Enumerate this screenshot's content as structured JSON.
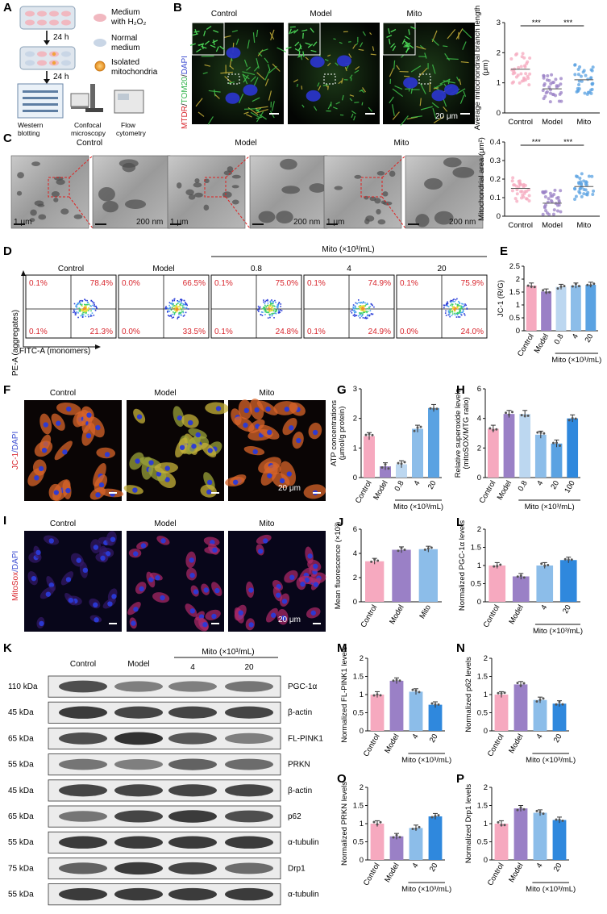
{
  "panels": {
    "A": {
      "label": "A",
      "legend": [
        {
          "text_line1": "Medium",
          "text_line2": "with H₂O₂",
          "color": "#f1b8c0"
        },
        {
          "text_line1": "Normal",
          "text_line2": "medium",
          "color": "#c9d6e6"
        },
        {
          "text_line1": "Isolated",
          "text_line2": "mitochondria",
          "color": "#f0a33a"
        }
      ],
      "step1": "24 h",
      "step2": "24 h",
      "methods": [
        "Western\nblotting",
        "Confocal\nmicroscopy",
        "Flow\ncytometry"
      ]
    },
    "B": {
      "label": "B",
      "image_titles": [
        "Control",
        "Model",
        "Mito"
      ],
      "stain_label": {
        "p1": "MTDR",
        "p2": "/",
        "p3": "TOM20",
        "p4": "/",
        "p5": "DAPI"
      },
      "scale": "20 μm"
    },
    "C": {
      "label": "C",
      "image_titles": [
        "Control",
        "Model",
        "Mito"
      ],
      "scale_labels": [
        "1 μm",
        "200 nm",
        "1 μm",
        "200 nm",
        "1 μm",
        "200 nm"
      ]
    },
    "D": {
      "label": "D",
      "header_mito": "Mito (×10³/mL)",
      "titles": [
        "Control",
        "Model",
        "0.8",
        "4",
        "20"
      ],
      "quadrants": [
        [
          "0.1%",
          "78.4%",
          "0.1%",
          "21.3%"
        ],
        [
          "0.0%",
          "66.5%",
          "0.0%",
          "33.5%"
        ],
        [
          "0.1%",
          "75.0%",
          "0.1%",
          "24.8%"
        ],
        [
          "0.1%",
          "74.9%",
          "0.1%",
          "24.9%"
        ],
        [
          "0.1%",
          "75.9%",
          "0.0%",
          "24.0%"
        ]
      ],
      "ylabel": "PE-A (aggregates)",
      "xlabel": "FITC-A (monomers)"
    },
    "F": {
      "label": "F",
      "titles": [
        "Control",
        "Model",
        "Mito"
      ],
      "stain_label": {
        "p1": "JC-1",
        "p2": "/DAPI"
      },
      "scale": "20 μm"
    },
    "I": {
      "label": "I",
      "titles": [
        "Control",
        "Model",
        "Mito"
      ],
      "stain_label": {
        "p1": "MitoSox",
        "p2": "/DAPI"
      },
      "scale": "20 μm"
    },
    "K": {
      "label": "K",
      "lane_titles": [
        "Control",
        "Model",
        "4",
        "20"
      ],
      "header_mito": "Mito (×10³/mL)",
      "rows": [
        {
          "kda": "110 kDa",
          "protein": "PGC-1α"
        },
        {
          "kda": "45 kDa",
          "protein": "β-actin"
        },
        {
          "kda": "65 kDa",
          "protein": "FL-PINK1"
        },
        {
          "kda": "55 kDa",
          "protein": "PRKN"
        },
        {
          "kda": "45 kDa",
          "protein": "β-actin"
        },
        {
          "kda": "65 kDa",
          "protein": "p62"
        },
        {
          "kda": "55 kDa",
          "protein": "α-tubulin"
        },
        {
          "kda": "75 kDa",
          "protein": "Drp1"
        },
        {
          "kda": "55 kDa",
          "protein": "α-tubulin"
        }
      ]
    }
  },
  "colors": {
    "control": "#f6a9bf",
    "model": "#9a80c6",
    "mito_light": "#bcd7f0",
    "mito_mid": "#8cbde9",
    "mito_dark": "#5aa2e2",
    "mito_darkest": "#2f88dd",
    "text_red": "#d8262d"
  },
  "chart_data": [
    {
      "id": "B",
      "type": "scatter",
      "title": "",
      "ylabel": "Average mitochondrial branch length (μm)",
      "categories": [
        "Control",
        "Model",
        "Mito"
      ],
      "ylim": [
        0,
        3
      ],
      "yticks": [
        0,
        1,
        2,
        3
      ],
      "means": [
        1.45,
        0.8,
        1.1
      ],
      "sig": [
        {
          "a": 0,
          "b": 1,
          "label": "***"
        },
        {
          "a": 1,
          "b": 2,
          "label": "***"
        }
      ]
    },
    {
      "id": "C",
      "type": "scatter",
      "title": "",
      "ylabel": "Mitochondrial area (μm²)",
      "categories": [
        "Control",
        "Model",
        "Mito"
      ],
      "ylim": [
        0,
        0.4
      ],
      "yticks": [
        0.0,
        0.1,
        0.2,
        0.3,
        0.4
      ],
      "means": [
        0.15,
        0.07,
        0.16
      ],
      "sig": [
        {
          "a": 0,
          "b": 1,
          "label": "***"
        },
        {
          "a": 1,
          "b": 2,
          "label": "***"
        }
      ]
    },
    {
      "id": "E",
      "type": "bar",
      "label": "E",
      "ylabel": "JC-1 (R/G)",
      "xlabel_group": "Mito (×10³/mL)",
      "categories": [
        "Control",
        "Model",
        "0.8",
        "4",
        "20"
      ],
      "values": [
        1.75,
        1.52,
        1.7,
        1.75,
        1.78
      ],
      "ylim": [
        0,
        2.5
      ],
      "yticks": [
        0.0,
        0.5,
        1.0,
        1.5,
        2.0,
        2.5
      ]
    },
    {
      "id": "G",
      "type": "bar",
      "label": "G",
      "ylabel": "ATP concentrations (μmol/g protein)",
      "xlabel_group": "Mito (×10³/mL)",
      "categories": [
        "Control",
        "Model",
        "0.8",
        "4",
        "20"
      ],
      "values": [
        1.4,
        0.38,
        0.45,
        1.65,
        2.35
      ],
      "ylim": [
        0,
        3
      ],
      "yticks": [
        0,
        1,
        2,
        3
      ]
    },
    {
      "id": "H",
      "type": "bar",
      "label": "H",
      "ylabel": "Relative superoxide levels (mitoSOX/MTG ratio)",
      "xlabel_group": "Mito (×10³/mL)",
      "categories": [
        "Control",
        "Model",
        "0.8",
        "4",
        "20",
        "100"
      ],
      "values": [
        3.3,
        4.3,
        4.3,
        2.9,
        2.3,
        4.0
      ],
      "ylim": [
        0,
        6
      ],
      "yticks": [
        0,
        2,
        4,
        6
      ]
    },
    {
      "id": "J",
      "type": "bar",
      "label": "J",
      "ylabel": "Mean fluorescence (×10³)",
      "categories": [
        "Control",
        "Model",
        "Mito"
      ],
      "values": [
        3.35,
        4.3,
        4.35
      ],
      "ylim": [
        0,
        6
      ],
      "yticks": [
        0,
        2,
        4,
        6
      ]
    },
    {
      "id": "L",
      "type": "bar",
      "label": "L",
      "ylabel": "Normalized PGC-1α levels",
      "xlabel_group": "Mito (×10³/mL)",
      "categories": [
        "Control",
        "Model",
        "4",
        "20"
      ],
      "values": [
        1.0,
        0.7,
        1.0,
        1.15
      ],
      "ylim": [
        0,
        2.0
      ],
      "yticks": [
        0.0,
        0.5,
        1.0,
        1.5,
        2.0
      ]
    },
    {
      "id": "M",
      "type": "bar",
      "label": "M",
      "ylabel": "Normalized FL-PINK1 levels",
      "xlabel_group": "Mito (×10³/mL)",
      "categories": [
        "Control",
        "Model",
        "4",
        "20"
      ],
      "values": [
        1.0,
        1.38,
        1.08,
        0.72
      ],
      "ylim": [
        0,
        2.0
      ],
      "yticks": [
        0.0,
        0.5,
        1.0,
        1.5,
        2.0
      ]
    },
    {
      "id": "N",
      "type": "bar",
      "label": "N",
      "ylabel": "Normalized p62 levels",
      "xlabel_group": "Mito (×10³/mL)",
      "categories": [
        "Control",
        "Model",
        "4",
        "20"
      ],
      "values": [
        1.0,
        1.28,
        0.85,
        0.75
      ],
      "ylim": [
        0,
        2.0
      ],
      "yticks": [
        0.0,
        0.5,
        1.0,
        1.5,
        2.0
      ]
    },
    {
      "id": "O",
      "type": "bar",
      "label": "O",
      "ylabel": "Normalized PRKN levels",
      "xlabel_group": "Mito (×10³/mL)",
      "categories": [
        "Control",
        "Model",
        "4",
        "20"
      ],
      "values": [
        1.0,
        0.65,
        0.88,
        1.2
      ],
      "ylim": [
        0,
        2.0
      ],
      "yticks": [
        0.0,
        0.5,
        1.0,
        1.5,
        2.0
      ]
    },
    {
      "id": "P",
      "type": "bar",
      "label": "P",
      "ylabel": "Normalized Drp1 levels",
      "xlabel_group": "Mito (×10³/mL)",
      "categories": [
        "Control",
        "Model",
        "4",
        "20"
      ],
      "values": [
        1.0,
        1.42,
        1.3,
        1.1
      ],
      "ylim": [
        0,
        2.0
      ],
      "yticks": [
        0.0,
        0.5,
        1.0,
        1.5,
        2.0
      ]
    }
  ]
}
